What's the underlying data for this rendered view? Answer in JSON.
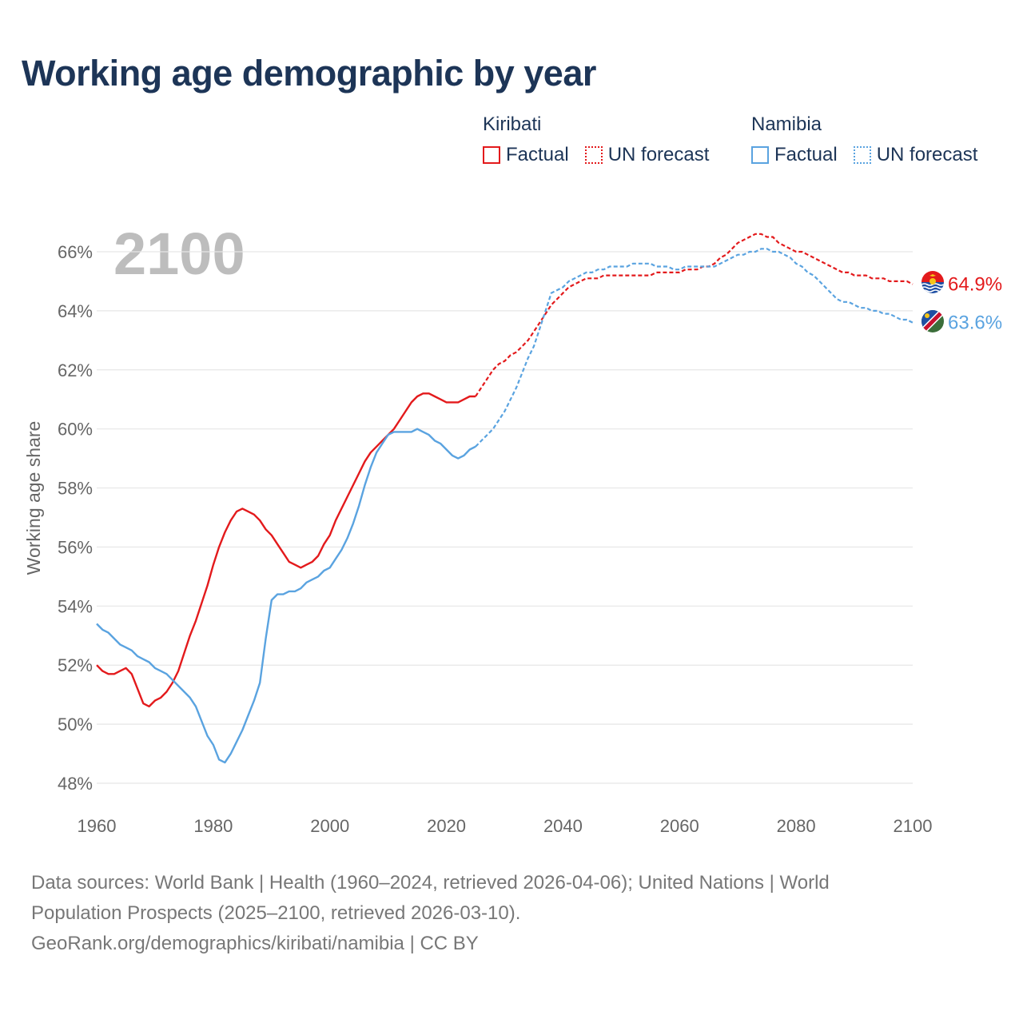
{
  "title": "Working age demographic by year",
  "legend": {
    "groups": [
      {
        "name": "Kiribati",
        "factual_label": "Factual",
        "forecast_label": "UN forecast",
        "color": "#e31a1c"
      },
      {
        "name": "Namibia",
        "factual_label": "Factual",
        "forecast_label": "UN forecast",
        "color": "#5aa3e0"
      }
    ]
  },
  "year_overlay": "2100",
  "sources": {
    "line1": "Data sources: World Bank | Health (1960–2024, retrieved 2026-04-06); United Nations | World",
    "line2": "Population Prospects (2025–2100, retrieved 2026-03-10).",
    "line3": "GeoRank.org/demographics/kiribati/namibia | CC BY"
  },
  "chart_data": {
    "type": "line",
    "title": "Working age demographic by year",
    "xlabel": "",
    "ylabel": "Working age share",
    "xlim": [
      1960,
      2100
    ],
    "ylim": [
      47.5,
      67
    ],
    "x_ticks": [
      1960,
      1980,
      2000,
      2020,
      2040,
      2060,
      2080,
      2100
    ],
    "y_ticks": [
      48,
      50,
      52,
      54,
      56,
      58,
      60,
      62,
      64,
      66
    ],
    "y_tick_suffix": "%",
    "forecast_start_year": 2025,
    "series": [
      {
        "name": "Kiribati",
        "color": "#e31a1c",
        "end_label": "64.9%",
        "points": [
          [
            1960,
            52.0
          ],
          [
            1961,
            51.8
          ],
          [
            1962,
            51.7
          ],
          [
            1963,
            51.7
          ],
          [
            1964,
            51.8
          ],
          [
            1965,
            51.9
          ],
          [
            1966,
            51.7
          ],
          [
            1967,
            51.2
          ],
          [
            1968,
            50.7
          ],
          [
            1969,
            50.6
          ],
          [
            1970,
            50.8
          ],
          [
            1971,
            50.9
          ],
          [
            1972,
            51.1
          ],
          [
            1973,
            51.4
          ],
          [
            1974,
            51.8
          ],
          [
            1975,
            52.4
          ],
          [
            1976,
            53.0
          ],
          [
            1977,
            53.5
          ],
          [
            1978,
            54.1
          ],
          [
            1979,
            54.7
          ],
          [
            1980,
            55.4
          ],
          [
            1981,
            56.0
          ],
          [
            1982,
            56.5
          ],
          [
            1983,
            56.9
          ],
          [
            1984,
            57.2
          ],
          [
            1985,
            57.3
          ],
          [
            1986,
            57.2
          ],
          [
            1987,
            57.1
          ],
          [
            1988,
            56.9
          ],
          [
            1989,
            56.6
          ],
          [
            1990,
            56.4
          ],
          [
            1991,
            56.1
          ],
          [
            1992,
            55.8
          ],
          [
            1993,
            55.5
          ],
          [
            1994,
            55.4
          ],
          [
            1995,
            55.3
          ],
          [
            1996,
            55.4
          ],
          [
            1997,
            55.5
          ],
          [
            1998,
            55.7
          ],
          [
            1999,
            56.1
          ],
          [
            2000,
            56.4
          ],
          [
            2001,
            56.9
          ],
          [
            2002,
            57.3
          ],
          [
            2003,
            57.7
          ],
          [
            2004,
            58.1
          ],
          [
            2005,
            58.5
          ],
          [
            2006,
            58.9
          ],
          [
            2007,
            59.2
          ],
          [
            2008,
            59.4
          ],
          [
            2009,
            59.6
          ],
          [
            2010,
            59.8
          ],
          [
            2011,
            60.0
          ],
          [
            2012,
            60.3
          ],
          [
            2013,
            60.6
          ],
          [
            2014,
            60.9
          ],
          [
            2015,
            61.1
          ],
          [
            2016,
            61.2
          ],
          [
            2017,
            61.2
          ],
          [
            2018,
            61.1
          ],
          [
            2019,
            61.0
          ],
          [
            2020,
            60.9
          ],
          [
            2021,
            60.9
          ],
          [
            2022,
            60.9
          ],
          [
            2023,
            61.0
          ],
          [
            2024,
            61.1
          ],
          [
            2025,
            61.1
          ],
          [
            2026,
            61.4
          ],
          [
            2027,
            61.7
          ],
          [
            2028,
            62.0
          ],
          [
            2029,
            62.2
          ],
          [
            2030,
            62.3
          ],
          [
            2031,
            62.5
          ],
          [
            2032,
            62.6
          ],
          [
            2033,
            62.8
          ],
          [
            2034,
            63.0
          ],
          [
            2035,
            63.3
          ],
          [
            2036,
            63.6
          ],
          [
            2037,
            63.9
          ],
          [
            2038,
            64.2
          ],
          [
            2039,
            64.4
          ],
          [
            2040,
            64.6
          ],
          [
            2041,
            64.8
          ],
          [
            2042,
            64.9
          ],
          [
            2043,
            65.0
          ],
          [
            2044,
            65.1
          ],
          [
            2045,
            65.1
          ],
          [
            2046,
            65.1
          ],
          [
            2047,
            65.2
          ],
          [
            2048,
            65.2
          ],
          [
            2049,
            65.2
          ],
          [
            2050,
            65.2
          ],
          [
            2051,
            65.2
          ],
          [
            2052,
            65.2
          ],
          [
            2053,
            65.2
          ],
          [
            2054,
            65.2
          ],
          [
            2055,
            65.2
          ],
          [
            2056,
            65.3
          ],
          [
            2057,
            65.3
          ],
          [
            2058,
            65.3
          ],
          [
            2059,
            65.3
          ],
          [
            2060,
            65.3
          ],
          [
            2061,
            65.4
          ],
          [
            2062,
            65.4
          ],
          [
            2063,
            65.4
          ],
          [
            2064,
            65.5
          ],
          [
            2065,
            65.5
          ],
          [
            2066,
            65.6
          ],
          [
            2067,
            65.8
          ],
          [
            2068,
            65.9
          ],
          [
            2069,
            66.1
          ],
          [
            2070,
            66.3
          ],
          [
            2071,
            66.4
          ],
          [
            2072,
            66.5
          ],
          [
            2073,
            66.6
          ],
          [
            2074,
            66.6
          ],
          [
            2075,
            66.5
          ],
          [
            2076,
            66.5
          ],
          [
            2077,
            66.3
          ],
          [
            2078,
            66.2
          ],
          [
            2079,
            66.1
          ],
          [
            2080,
            66.0
          ],
          [
            2081,
            66.0
          ],
          [
            2082,
            65.9
          ],
          [
            2083,
            65.8
          ],
          [
            2084,
            65.7
          ],
          [
            2085,
            65.6
          ],
          [
            2086,
            65.5
          ],
          [
            2087,
            65.4
          ],
          [
            2088,
            65.3
          ],
          [
            2089,
            65.3
          ],
          [
            2090,
            65.2
          ],
          [
            2091,
            65.2
          ],
          [
            2092,
            65.2
          ],
          [
            2093,
            65.1
          ],
          [
            2094,
            65.1
          ],
          [
            2095,
            65.1
          ],
          [
            2096,
            65.0
          ],
          [
            2097,
            65.0
          ],
          [
            2098,
            65.0
          ],
          [
            2099,
            65.0
          ],
          [
            2100,
            64.9
          ]
        ]
      },
      {
        "name": "Namibia",
        "color": "#5aa3e0",
        "end_label": "63.6%",
        "points": [
          [
            1960,
            53.4
          ],
          [
            1961,
            53.2
          ],
          [
            1962,
            53.1
          ],
          [
            1963,
            52.9
          ],
          [
            1964,
            52.7
          ],
          [
            1965,
            52.6
          ],
          [
            1966,
            52.5
          ],
          [
            1967,
            52.3
          ],
          [
            1968,
            52.2
          ],
          [
            1969,
            52.1
          ],
          [
            1970,
            51.9
          ],
          [
            1971,
            51.8
          ],
          [
            1972,
            51.7
          ],
          [
            1973,
            51.5
          ],
          [
            1974,
            51.3
          ],
          [
            1975,
            51.1
          ],
          [
            1976,
            50.9
          ],
          [
            1977,
            50.6
          ],
          [
            1978,
            50.1
          ],
          [
            1979,
            49.6
          ],
          [
            1980,
            49.3
          ],
          [
            1981,
            48.8
          ],
          [
            1982,
            48.7
          ],
          [
            1983,
            49.0
          ],
          [
            1984,
            49.4
          ],
          [
            1985,
            49.8
          ],
          [
            1986,
            50.3
          ],
          [
            1987,
            50.8
          ],
          [
            1988,
            51.4
          ],
          [
            1989,
            52.9
          ],
          [
            1990,
            54.2
          ],
          [
            1991,
            54.4
          ],
          [
            1992,
            54.4
          ],
          [
            1993,
            54.5
          ],
          [
            1994,
            54.5
          ],
          [
            1995,
            54.6
          ],
          [
            1996,
            54.8
          ],
          [
            1997,
            54.9
          ],
          [
            1998,
            55.0
          ],
          [
            1999,
            55.2
          ],
          [
            2000,
            55.3
          ],
          [
            2001,
            55.6
          ],
          [
            2002,
            55.9
          ],
          [
            2003,
            56.3
          ],
          [
            2004,
            56.8
          ],
          [
            2005,
            57.4
          ],
          [
            2006,
            58.1
          ],
          [
            2007,
            58.7
          ],
          [
            2008,
            59.2
          ],
          [
            2009,
            59.5
          ],
          [
            2010,
            59.8
          ],
          [
            2011,
            59.9
          ],
          [
            2012,
            59.9
          ],
          [
            2013,
            59.9
          ],
          [
            2014,
            59.9
          ],
          [
            2015,
            60.0
          ],
          [
            2016,
            59.9
          ],
          [
            2017,
            59.8
          ],
          [
            2018,
            59.6
          ],
          [
            2019,
            59.5
          ],
          [
            2020,
            59.3
          ],
          [
            2021,
            59.1
          ],
          [
            2022,
            59.0
          ],
          [
            2023,
            59.1
          ],
          [
            2024,
            59.3
          ],
          [
            2025,
            59.4
          ],
          [
            2026,
            59.6
          ],
          [
            2027,
            59.8
          ],
          [
            2028,
            60.0
          ],
          [
            2029,
            60.3
          ],
          [
            2030,
            60.6
          ],
          [
            2031,
            61.0
          ],
          [
            2032,
            61.4
          ],
          [
            2033,
            61.9
          ],
          [
            2034,
            62.4
          ],
          [
            2035,
            62.8
          ],
          [
            2036,
            63.4
          ],
          [
            2037,
            64.0
          ],
          [
            2038,
            64.6
          ],
          [
            2039,
            64.7
          ],
          [
            2040,
            64.8
          ],
          [
            2041,
            65.0
          ],
          [
            2042,
            65.1
          ],
          [
            2043,
            65.2
          ],
          [
            2044,
            65.3
          ],
          [
            2045,
            65.3
          ],
          [
            2046,
            65.4
          ],
          [
            2047,
            65.4
          ],
          [
            2048,
            65.5
          ],
          [
            2049,
            65.5
          ],
          [
            2050,
            65.5
          ],
          [
            2051,
            65.5
          ],
          [
            2052,
            65.6
          ],
          [
            2053,
            65.6
          ],
          [
            2054,
            65.6
          ],
          [
            2055,
            65.6
          ],
          [
            2056,
            65.5
          ],
          [
            2057,
            65.5
          ],
          [
            2058,
            65.5
          ],
          [
            2059,
            65.4
          ],
          [
            2060,
            65.4
          ],
          [
            2061,
            65.5
          ],
          [
            2062,
            65.5
          ],
          [
            2063,
            65.5
          ],
          [
            2064,
            65.5
          ],
          [
            2065,
            65.5
          ],
          [
            2066,
            65.5
          ],
          [
            2067,
            65.6
          ],
          [
            2068,
            65.7
          ],
          [
            2069,
            65.8
          ],
          [
            2070,
            65.9
          ],
          [
            2071,
            65.9
          ],
          [
            2072,
            66.0
          ],
          [
            2073,
            66.0
          ],
          [
            2074,
            66.1
          ],
          [
            2075,
            66.1
          ],
          [
            2076,
            66.0
          ],
          [
            2077,
            66.0
          ],
          [
            2078,
            65.9
          ],
          [
            2079,
            65.8
          ],
          [
            2080,
            65.6
          ],
          [
            2081,
            65.5
          ],
          [
            2082,
            65.3
          ],
          [
            2083,
            65.2
          ],
          [
            2084,
            65.0
          ],
          [
            2085,
            64.8
          ],
          [
            2086,
            64.6
          ],
          [
            2087,
            64.4
          ],
          [
            2088,
            64.3
          ],
          [
            2089,
            64.3
          ],
          [
            2090,
            64.2
          ],
          [
            2091,
            64.1
          ],
          [
            2092,
            64.1
          ],
          [
            2093,
            64.0
          ],
          [
            2094,
            64.0
          ],
          [
            2095,
            63.9
          ],
          [
            2096,
            63.9
          ],
          [
            2097,
            63.8
          ],
          [
            2098,
            63.7
          ],
          [
            2099,
            63.7
          ],
          [
            2100,
            63.6
          ]
        ]
      }
    ]
  }
}
